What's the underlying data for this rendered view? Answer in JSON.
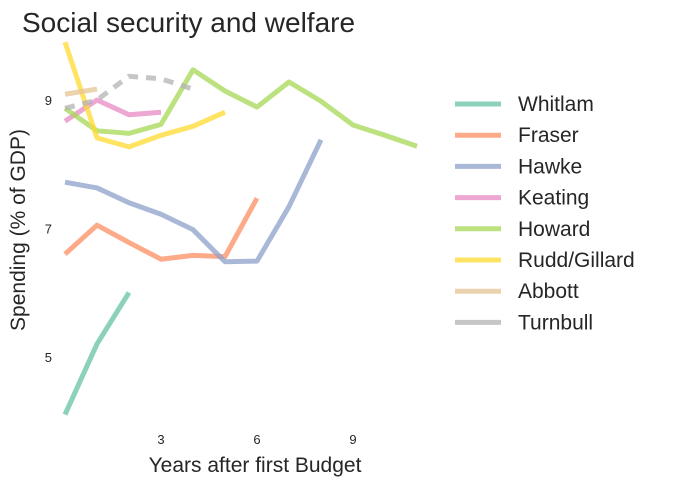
{
  "chart_data": {
    "type": "line",
    "title": "Social security and welfare",
    "xlabel": "Years after first Budget",
    "ylabel": "Spending (% of GDP)",
    "xlim": [
      0,
      11
    ],
    "ylim": [
      4,
      10
    ],
    "xticks": [
      3,
      6,
      9
    ],
    "yticks": [
      5,
      7,
      9
    ],
    "grid": false,
    "legend": "right",
    "series": [
      {
        "name": "Whitlam",
        "color": "#66c2a5",
        "x": [
          0,
          1,
          2
        ],
        "y": [
          4.1,
          5.2,
          6.0
        ]
      },
      {
        "name": "Fraser",
        "color": "#fc8d62",
        "x": [
          0,
          1,
          2,
          3,
          4,
          5,
          6
        ],
        "y": [
          6.6,
          7.05,
          6.78,
          6.52,
          6.58,
          6.56,
          7.47
        ]
      },
      {
        "name": "Hawke",
        "color": "#8da0cb",
        "x": [
          0,
          1,
          2,
          3,
          4,
          5,
          6,
          7,
          8
        ],
        "y": [
          7.72,
          7.63,
          7.4,
          7.22,
          6.98,
          6.48,
          6.49,
          7.34,
          8.38
        ]
      },
      {
        "name": "Keating",
        "color": "#e78ac3",
        "x": [
          0,
          1,
          2,
          3
        ],
        "y": [
          8.67,
          9.0,
          8.77,
          8.81
        ]
      },
      {
        "name": "Howard",
        "color": "#a6d854",
        "x": [
          0,
          1,
          2,
          3,
          4,
          5,
          6,
          7,
          8,
          9,
          10,
          11
        ],
        "y": [
          8.87,
          8.52,
          8.48,
          8.62,
          9.47,
          9.14,
          8.89,
          9.28,
          8.98,
          8.61,
          8.45,
          8.28
        ]
      },
      {
        "name": "Rudd/Gillard",
        "color": "#ffd92f",
        "x": [
          0,
          1,
          2,
          3,
          4,
          5
        ],
        "y": [
          9.9,
          8.41,
          8.27,
          8.45,
          8.59,
          8.81
        ]
      },
      {
        "name": "Abbott",
        "color": "#e5c494",
        "x": [
          0,
          1
        ],
        "y": [
          9.09,
          9.17
        ]
      },
      {
        "name": "Turnbull",
        "color": "#b3b3b3",
        "dashed": true,
        "x": [
          0,
          1,
          2,
          3,
          4
        ],
        "y": [
          8.87,
          9.0,
          9.37,
          9.33,
          9.17
        ]
      }
    ]
  }
}
